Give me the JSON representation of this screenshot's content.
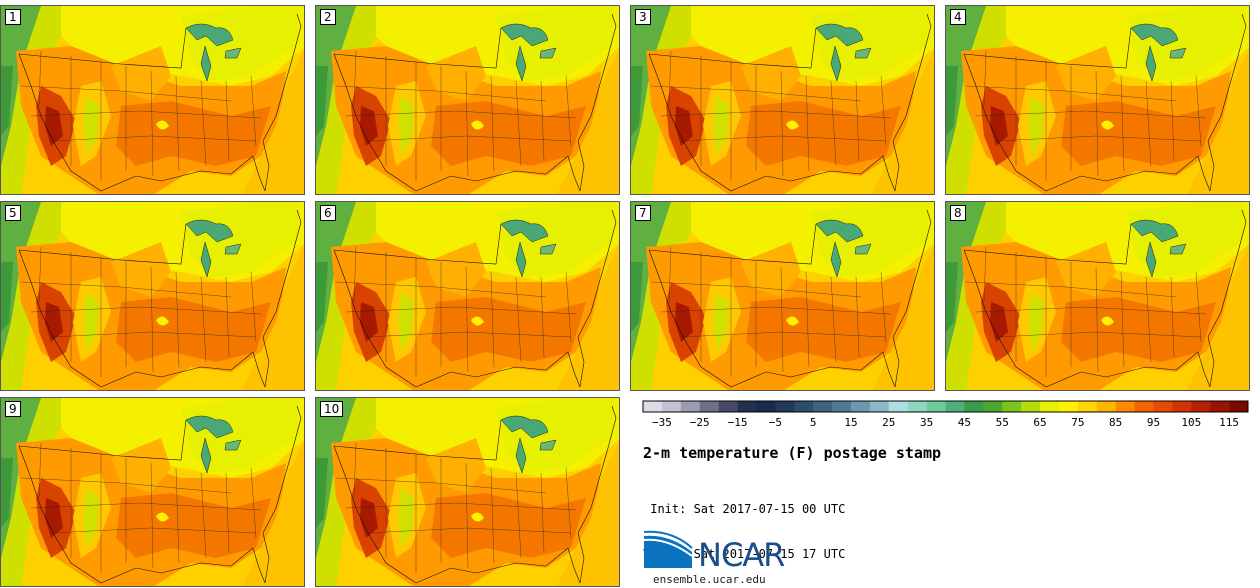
{
  "panels": [
    {
      "label": "1"
    },
    {
      "label": "2"
    },
    {
      "label": "3"
    },
    {
      "label": "4"
    },
    {
      "label": "5"
    },
    {
      "label": "6"
    },
    {
      "label": "7"
    },
    {
      "label": "8"
    },
    {
      "label": "9"
    },
    {
      "label": "10"
    }
  ],
  "colorbar": {
    "colors": [
      "#dcdce6",
      "#c2c2d0",
      "#9a9ab0",
      "#6e7088",
      "#454a68",
      "#23304f",
      "#1a2a4a",
      "#223a5a",
      "#2e4c6c",
      "#3e6280",
      "#4f7a94",
      "#6a9aae",
      "#8ab8c6",
      "#a8e0e0",
      "#8ed8c0",
      "#6ccc9c",
      "#4db07a",
      "#3a9a4a",
      "#4ca82c",
      "#7cc41a",
      "#b4dc0a",
      "#e6f000",
      "#fff200",
      "#ffd400",
      "#ffb400",
      "#ff8a00",
      "#f46400",
      "#e84a00",
      "#d43200",
      "#b81e00",
      "#9a1200",
      "#7a0a00"
    ],
    "tick_labels": [
      "−35",
      "−25",
      "−15",
      "−5",
      "5",
      "15",
      "25",
      "35",
      "45",
      "55",
      "65",
      "75",
      "85",
      "95",
      "105",
      "115"
    ]
  },
  "title": "2-m temperature (F) postage stamp",
  "init_line": " Init: Sat 2017-07-15 00 UTC",
  "valid_line": "Valid: Sat 2017-07-15 17 UTC",
  "logo": {
    "text": "NCAR",
    "site": "ensemble.ucar.edu"
  }
}
